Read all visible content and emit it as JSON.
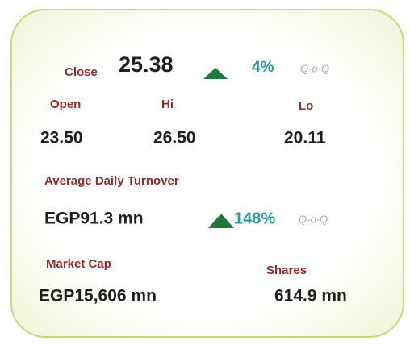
{
  "close": {
    "label": "Close",
    "value": "25.38",
    "change": "4%",
    "period": "Q-o-Q"
  },
  "range": {
    "open": {
      "label": "Open",
      "value": "23.50"
    },
    "hi": {
      "label": "Hi",
      "value": "26.50"
    },
    "lo": {
      "label": "Lo",
      "value": "20.11"
    }
  },
  "turnover": {
    "label": "Average Daily Turnover",
    "value": "EGP91.3 mn",
    "change": "148%",
    "period": "Q-o-Q"
  },
  "market_cap": {
    "label": "Market Cap",
    "value": "EGP15,606 mn"
  },
  "shares": {
    "label": "Shares",
    "value": "614.9 mn"
  }
}
